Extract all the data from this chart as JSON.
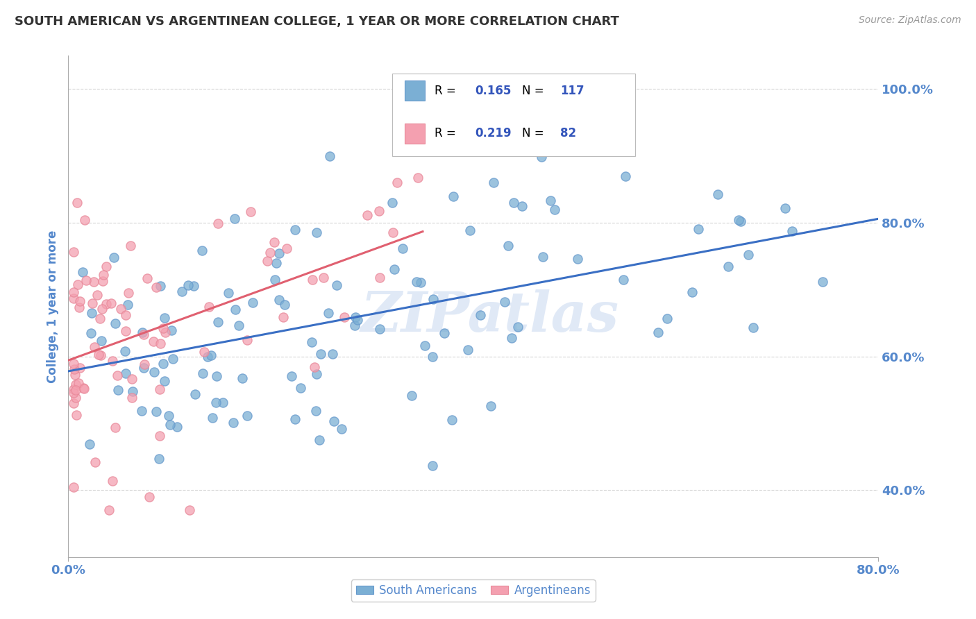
{
  "title": "SOUTH AMERICAN VS ARGENTINEAN COLLEGE, 1 YEAR OR MORE CORRELATION CHART",
  "source": "Source: ZipAtlas.com",
  "ylabel": "College, 1 year or more",
  "watermark": "ZIPatlas",
  "blue_color": "#7BAFD4",
  "blue_color_edge": "#6699CC",
  "pink_color": "#F4A0B0",
  "pink_color_edge": "#E88899",
  "blue_line_color": "#3A6FC4",
  "pink_line_color": "#E06070",
  "title_color": "#333333",
  "axis_tick_color": "#5588CC",
  "legend_value_color": "#3355BB",
  "south_americans_label": "South Americans",
  "argentineans_label": "Argentineans",
  "x_range": [
    0.0,
    0.8
  ],
  "y_range": [
    0.3,
    1.05
  ],
  "blue_r": 0.165,
  "blue_n": 117,
  "pink_r": 0.219,
  "pink_n": 82
}
